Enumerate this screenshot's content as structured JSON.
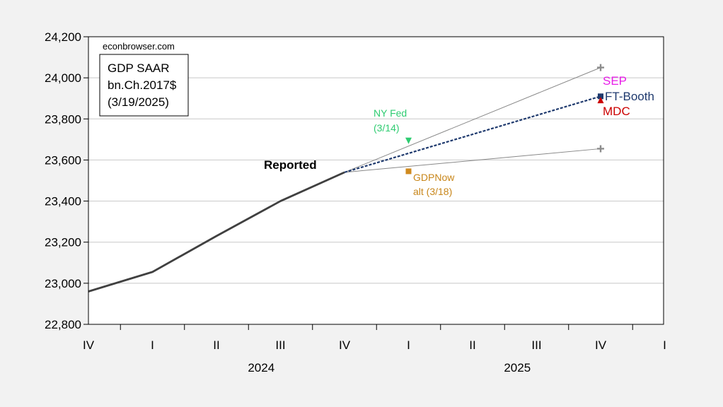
{
  "chart_data": {
    "type": "line",
    "watermark": "econbrowser.com",
    "legend_box": [
      "GDP SAAR",
      "bn.Ch.2017$",
      "(3/19/2025)"
    ],
    "legend_placement": "top-left",
    "grid": "horizontal",
    "y_ticks": [
      "22,800",
      "23,000",
      "23,200",
      "23,400",
      "23,600",
      "23,800",
      "24,000",
      "24,200"
    ],
    "y_tick_values": [
      22800,
      23000,
      23200,
      23400,
      23600,
      23800,
      24000,
      24200
    ],
    "ylim": [
      22800,
      24200
    ],
    "quarter_labels": [
      "IV",
      "I",
      "II",
      "III",
      "IV",
      "I",
      "II",
      "III",
      "IV",
      "I"
    ],
    "year_labels": [
      {
        "label": "2024",
        "center_q": 2.5
      },
      {
        "label": "2025",
        "center_q": 6.5
      }
    ],
    "x_index_range": [
      0,
      9
    ],
    "reported": {
      "label": "Reported",
      "color": "#404040",
      "x": [
        0,
        1,
        2,
        3,
        4
      ],
      "y": [
        22960,
        23055,
        23230,
        23400,
        23540
      ]
    },
    "forecast_lines": [
      {
        "name": "upper",
        "color": "#888888",
        "x": [
          4,
          8
        ],
        "y": [
          23540,
          24050
        ]
      },
      {
        "name": "lower",
        "color": "#888888",
        "x": [
          4,
          8
        ],
        "y": [
          23540,
          23655
        ]
      },
      {
        "name": "FT-Booth",
        "color": "#1f3a6e",
        "x": [
          4,
          8
        ],
        "y": [
          23540,
          23910
        ],
        "dashed": true
      }
    ],
    "points": [
      {
        "label": "SEP",
        "marker": "plus",
        "color": "#8c8c8c",
        "x": 8,
        "y": 24050
      },
      {
        "label": "",
        "marker": "plus",
        "color": "#8c8c8c",
        "x": 8,
        "y": 23655
      },
      {
        "label": "FT-Booth",
        "marker": "square",
        "color": "#1f3a6e",
        "x": 8,
        "y": 23910
      },
      {
        "label": "MDC",
        "marker": "triangle-up",
        "color": "#cc0000",
        "x": 8,
        "y": 23890
      },
      {
        "label": "NY Fed",
        "marker": "triangle-down",
        "color": "#2ecc71",
        "x": 5,
        "y": 23695
      },
      {
        "label": "GDPNow",
        "marker": "square",
        "color": "#d08a1e",
        "x": 5,
        "y": 23545
      }
    ],
    "annotations": [
      {
        "id": "reported",
        "lines": [
          "Reported"
        ],
        "color": "#000000"
      },
      {
        "id": "nyfed",
        "lines": [
          "NY Fed",
          "(3/14)"
        ],
        "color": "#2ecc71"
      },
      {
        "id": "gdpnow",
        "lines": [
          "GDPNow",
          "alt (3/18)"
        ],
        "color": "#c8861a"
      },
      {
        "id": "sep",
        "lines": [
          "SEP"
        ],
        "color": "#e81ce8"
      },
      {
        "id": "ftbooth",
        "lines": [
          "FT-Booth"
        ],
        "color": "#1f3a6e"
      },
      {
        "id": "mdc",
        "lines": [
          "MDC"
        ],
        "color": "#cc0000"
      }
    ]
  }
}
